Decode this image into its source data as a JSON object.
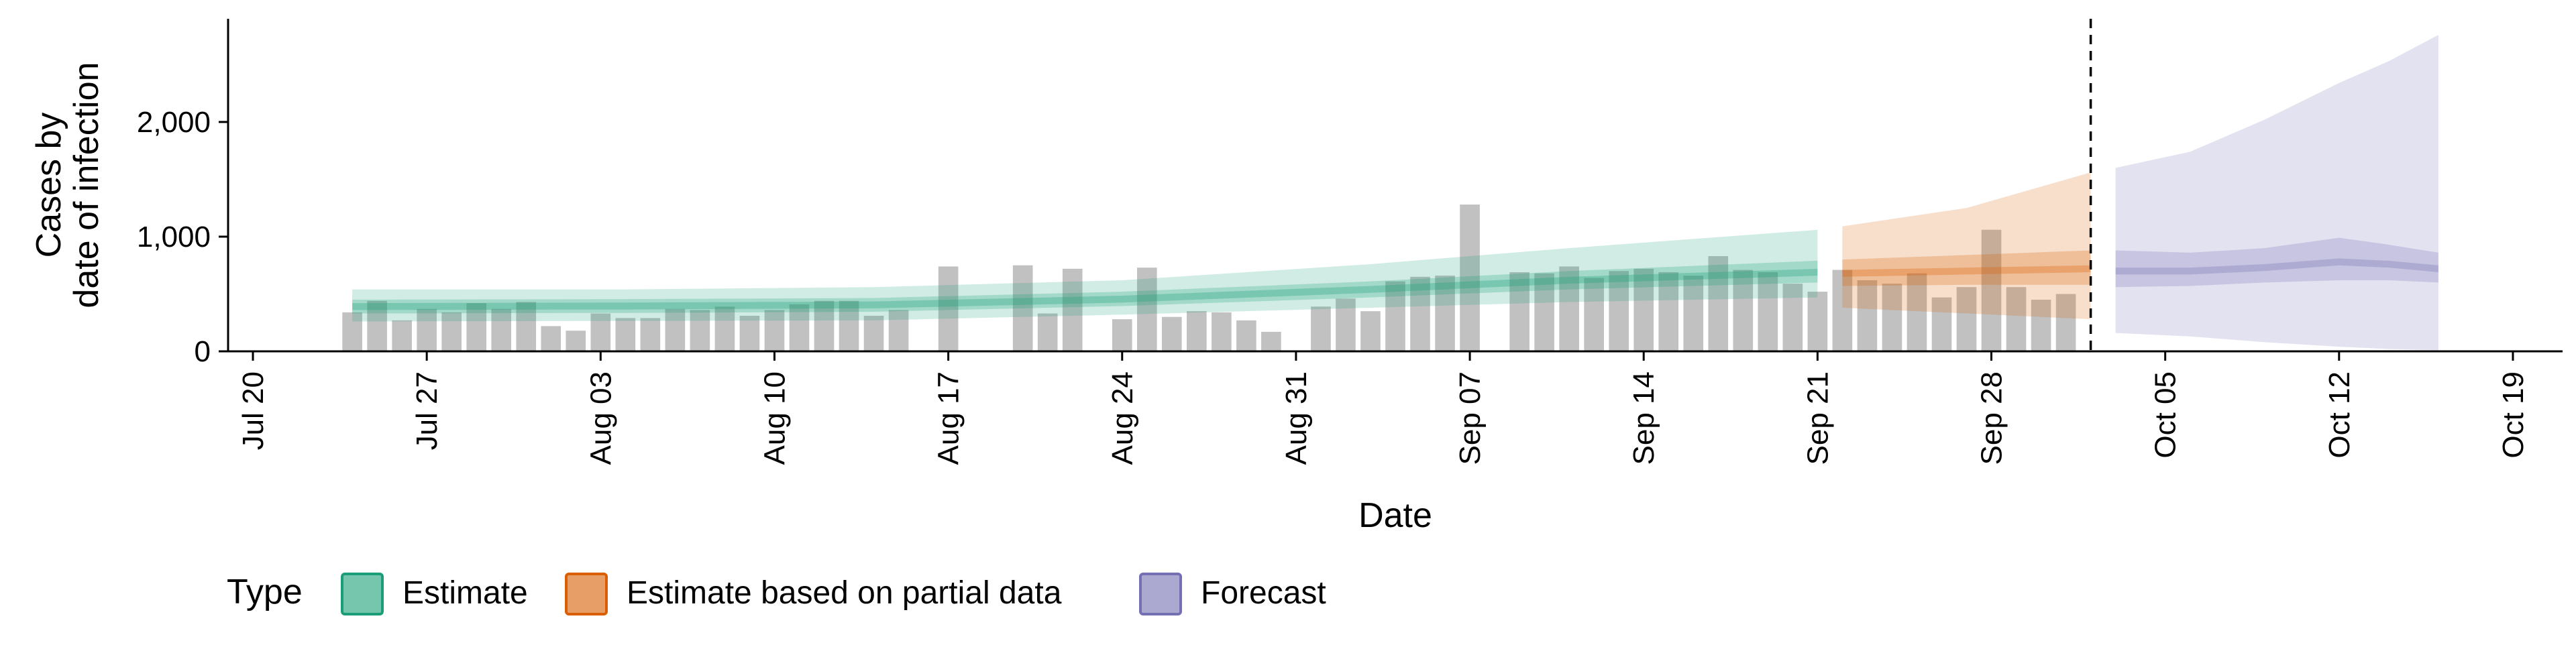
{
  "chart_data": {
    "type": "bar",
    "xlabel": "Date",
    "ylabel": [
      "Cases by",
      "date of infection"
    ],
    "ylim": [
      0,
      2900
    ],
    "yticks": [
      0,
      1000,
      2000
    ],
    "ytick_labels": [
      "0",
      "1,000",
      "2,000"
    ],
    "xlim": [
      "2020-07-19",
      "2020-10-21"
    ],
    "xticks": [
      "2020-07-20",
      "2020-07-27",
      "2020-08-03",
      "2020-08-10",
      "2020-08-17",
      "2020-08-24",
      "2020-08-31",
      "2020-09-07",
      "2020-09-14",
      "2020-09-21",
      "2020-09-28",
      "2020-10-05",
      "2020-10-12",
      "2020-10-19"
    ],
    "xtick_labels": [
      "Jul 20",
      "Jul 27",
      "Aug 03",
      "Aug 10",
      "Aug 17",
      "Aug 24",
      "Aug 31",
      "Sep 07",
      "Sep 14",
      "Sep 21",
      "Sep 28",
      "Oct 05",
      "Oct 12",
      "Oct 19"
    ],
    "forecast_start": "2020-10-02",
    "bars": {
      "dates": [
        "2020-07-24",
        "2020-07-25",
        "2020-07-26",
        "2020-07-27",
        "2020-07-28",
        "2020-07-29",
        "2020-07-30",
        "2020-07-31",
        "2020-08-01",
        "2020-08-02",
        "2020-08-03",
        "2020-08-04",
        "2020-08-05",
        "2020-08-06",
        "2020-08-07",
        "2020-08-08",
        "2020-08-09",
        "2020-08-10",
        "2020-08-11",
        "2020-08-12",
        "2020-08-13",
        "2020-08-14",
        "2020-08-15",
        "2020-08-16",
        "2020-08-17",
        "2020-08-18",
        "2020-08-19",
        "2020-08-20",
        "2020-08-21",
        "2020-08-22",
        "2020-08-23",
        "2020-08-24",
        "2020-08-25",
        "2020-08-26",
        "2020-08-27",
        "2020-08-28",
        "2020-08-29",
        "2020-08-30",
        "2020-08-31",
        "2020-09-01",
        "2020-09-02",
        "2020-09-03",
        "2020-09-04",
        "2020-09-05",
        "2020-09-06",
        "2020-09-07",
        "2020-09-08",
        "2020-09-09",
        "2020-09-10",
        "2020-09-11",
        "2020-09-12",
        "2020-09-13",
        "2020-09-14",
        "2020-09-15",
        "2020-09-16",
        "2020-09-17",
        "2020-09-18",
        "2020-09-19",
        "2020-09-20",
        "2020-09-21",
        "2020-09-22",
        "2020-09-23",
        "2020-09-24",
        "2020-09-25",
        "2020-09-26",
        "2020-09-27",
        "2020-09-28",
        "2020-09-29",
        "2020-09-30",
        "2020-10-01",
        "2020-10-02"
      ],
      "values": [
        340,
        440,
        270,
        370,
        340,
        420,
        370,
        430,
        220,
        180,
        330,
        290,
        290,
        370,
        360,
        390,
        310,
        360,
        410,
        440,
        440,
        310,
        360,
        0,
        740,
        0,
        0,
        750,
        330,
        720,
        0,
        280,
        730,
        300,
        350,
        340,
        270,
        170,
        0,
        390,
        460,
        350,
        610,
        650,
        660,
        1280,
        0,
        690,
        680,
        740,
        640,
        700,
        720,
        690,
        660,
        830,
        710,
        690,
        590,
        520,
        710,
        620,
        590,
        680,
        470,
        560,
        1060,
        560,
        450,
        500,
        0
      ]
    },
    "series": [
      {
        "name": "Estimate",
        "color": "#1B9E77",
        "x": [
          "2020-07-24",
          "2020-08-04",
          "2020-08-14",
          "2020-08-24",
          "2020-09-03",
          "2020-09-11",
          "2020-09-21"
        ],
        "median": [
          390,
          395,
          405,
          455,
          540,
          620,
          690
        ],
        "inner": [
          [
            330,
            450
          ],
          [
            335,
            455
          ],
          [
            345,
            465
          ],
          [
            395,
            520
          ],
          [
            470,
            610
          ],
          [
            540,
            700
          ],
          [
            600,
            790
          ]
        ],
        "outer": [
          [
            260,
            540
          ],
          [
            265,
            540
          ],
          [
            270,
            560
          ],
          [
            320,
            620
          ],
          [
            380,
            760
          ],
          [
            430,
            900
          ],
          [
            470,
            1060
          ]
        ]
      },
      {
        "name": "Estimate based on partial data",
        "color": "#D95F02",
        "x": [
          "2020-09-22",
          "2020-09-27",
          "2020-10-02"
        ],
        "median": [
          680,
          700,
          720
        ],
        "inner": [
          [
            570,
            800
          ],
          [
            580,
            840
          ],
          [
            580,
            880
          ]
        ],
        "outer": [
          [
            380,
            1090
          ],
          [
            330,
            1250
          ],
          [
            280,
            1560
          ]
        ]
      },
      {
        "name": "Forecast",
        "color": "#7570B3",
        "x": [
          "2020-10-03",
          "2020-10-06",
          "2020-10-09",
          "2020-10-12",
          "2020-10-14",
          "2020-10-16"
        ],
        "median": [
          700,
          700,
          730,
          780,
          760,
          720
        ],
        "inner": [
          [
            560,
            880
          ],
          [
            570,
            860
          ],
          [
            600,
            900
          ],
          [
            620,
            990
          ],
          [
            620,
            930
          ],
          [
            600,
            860
          ]
        ],
        "outer": [
          [
            160,
            1600
          ],
          [
            130,
            1740
          ],
          [
            80,
            2020
          ],
          [
            40,
            2340
          ],
          [
            20,
            2530
          ],
          [
            10,
            2760
          ]
        ]
      }
    ],
    "legend": {
      "title": "Type",
      "position": "bottom",
      "entries": [
        "Estimate",
        "Estimate based on partial data",
        "Forecast"
      ]
    }
  }
}
